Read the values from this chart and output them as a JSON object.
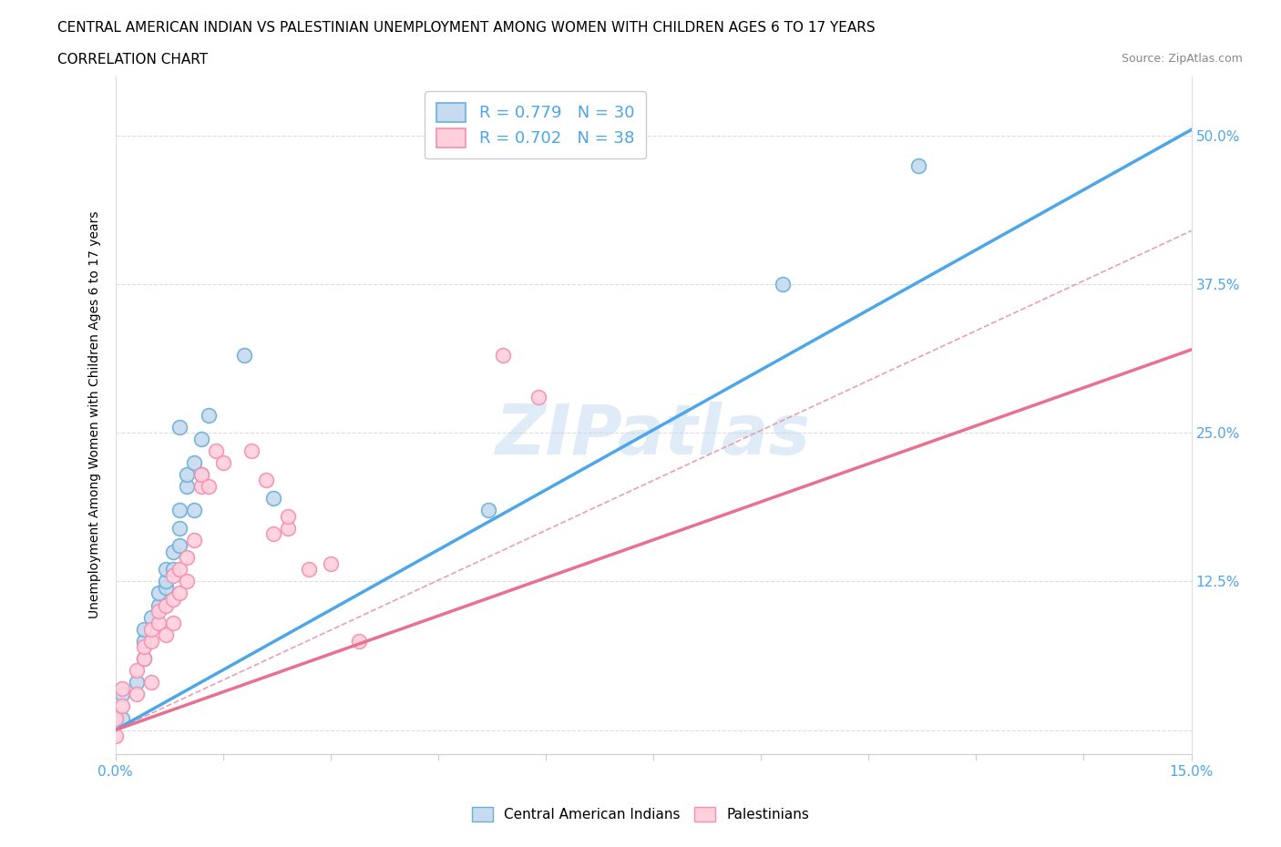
{
  "title_line1": "CENTRAL AMERICAN INDIAN VS PALESTINIAN UNEMPLOYMENT AMONG WOMEN WITH CHILDREN AGES 6 TO 17 YEARS",
  "title_line2": "CORRELATION CHART",
  "source_text": "Source: ZipAtlas.com",
  "ylabel": "Unemployment Among Women with Children Ages 6 to 17 years",
  "xlim": [
    0.0,
    0.15
  ],
  "ylim": [
    -0.02,
    0.55
  ],
  "yticks": [
    0.0,
    0.125,
    0.25,
    0.375,
    0.5
  ],
  "ytick_labels": [
    "",
    "12.5%",
    "25.0%",
    "37.5%",
    "50.0%"
  ],
  "watermark": "ZIPatlas",
  "blue_color": "#6baed6",
  "blue_fill": "#c6dbef",
  "pink_color": "#f48fb1",
  "pink_fill": "#ffd0dc",
  "line_blue": "#4da6e8",
  "line_pink": "#e87090",
  "dashed_line_color": "#e8a0b0",
  "blue_scatter_x": [
    0.001,
    0.001,
    0.003,
    0.004,
    0.004,
    0.004,
    0.005,
    0.006,
    0.006,
    0.007,
    0.007,
    0.007,
    0.008,
    0.008,
    0.009,
    0.009,
    0.009,
    0.009,
    0.01,
    0.01,
    0.011,
    0.011,
    0.012,
    0.012,
    0.013,
    0.018,
    0.022,
    0.052,
    0.093,
    0.112
  ],
  "blue_scatter_y": [
    0.01,
    0.03,
    0.04,
    0.06,
    0.075,
    0.085,
    0.095,
    0.105,
    0.115,
    0.12,
    0.125,
    0.135,
    0.135,
    0.15,
    0.155,
    0.17,
    0.185,
    0.255,
    0.205,
    0.215,
    0.225,
    0.185,
    0.215,
    0.245,
    0.265,
    0.315,
    0.195,
    0.185,
    0.375,
    0.475
  ],
  "pink_scatter_x": [
    0.0,
    0.0,
    0.001,
    0.001,
    0.003,
    0.003,
    0.004,
    0.004,
    0.005,
    0.005,
    0.005,
    0.006,
    0.006,
    0.007,
    0.007,
    0.008,
    0.008,
    0.008,
    0.009,
    0.009,
    0.01,
    0.01,
    0.011,
    0.012,
    0.012,
    0.013,
    0.014,
    0.015,
    0.019,
    0.021,
    0.022,
    0.024,
    0.024,
    0.027,
    0.03,
    0.034,
    0.054,
    0.059
  ],
  "pink_scatter_y": [
    -0.005,
    0.01,
    0.02,
    0.035,
    0.03,
    0.05,
    0.06,
    0.07,
    0.04,
    0.075,
    0.085,
    0.09,
    0.1,
    0.08,
    0.105,
    0.09,
    0.11,
    0.13,
    0.115,
    0.135,
    0.125,
    0.145,
    0.16,
    0.205,
    0.215,
    0.205,
    0.235,
    0.225,
    0.235,
    0.21,
    0.165,
    0.17,
    0.18,
    0.135,
    0.14,
    0.075,
    0.315,
    0.28
  ],
  "blue_line_x0": 0.0,
  "blue_line_y0": 0.0,
  "blue_line_x1": 0.15,
  "blue_line_y1": 0.505,
  "pink_line_x0": 0.0,
  "pink_line_y0": 0.0,
  "pink_line_x1": 0.15,
  "pink_line_y1": 0.32,
  "dash_line_x0": 0.0,
  "dash_line_y0": 0.0,
  "dash_line_x1": 0.15,
  "dash_line_y1": 0.42
}
